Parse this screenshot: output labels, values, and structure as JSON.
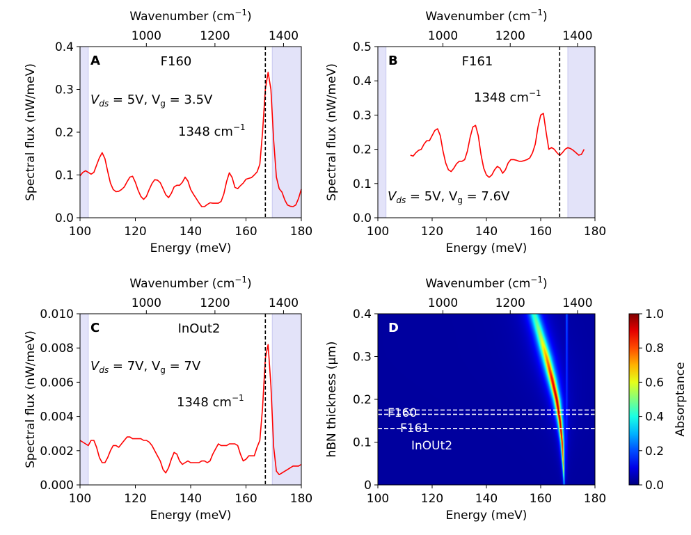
{
  "chart_data": [
    {
      "panel": "A",
      "type": "line",
      "sample": "F160",
      "condition": "V_ds = 5V,  V_g = 3.5V",
      "xlabel": "Energy (meV)",
      "ylabel": "Spectral flux  (nW/meV)",
      "top_xlabel": "Wavenumber (cm−1)",
      "xlim": [
        100,
        180
      ],
      "ylim": [
        0.0,
        0.4
      ],
      "xticks": [
        "100",
        "120",
        "140",
        "160",
        "180"
      ],
      "yticks": [
        "0.0",
        "0.1",
        "0.2",
        "0.3",
        "0.4"
      ],
      "top_ticks": [
        "800",
        "1000",
        "1200",
        "1400"
      ],
      "bands": [
        [
          100,
          103
        ],
        [
          169.5,
          180
        ]
      ],
      "vline": 167,
      "annotation": "1348 cm−1",
      "series": [
        {
          "color": "#ff0000",
          "x": [
            100,
            101,
            102,
            103,
            104,
            105,
            106,
            107,
            108,
            109,
            110,
            111,
            112,
            113,
            114,
            115,
            116,
            117,
            118,
            119,
            120,
            121,
            122,
            123,
            124,
            125,
            126,
            127,
            128,
            129,
            130,
            131,
            132,
            133,
            134,
            135,
            136,
            137,
            138,
            139,
            140,
            141,
            142,
            143,
            144,
            145,
            146,
            147,
            148,
            149,
            150,
            151,
            152,
            153,
            154,
            155,
            156,
            157,
            158,
            159,
            160,
            161,
            162,
            163,
            164,
            165,
            166,
            167,
            168,
            169,
            170,
            171,
            172,
            173,
            174,
            175,
            176,
            177,
            178,
            179,
            180
          ],
          "y": [
            0.098,
            0.106,
            0.11,
            0.106,
            0.102,
            0.106,
            0.123,
            0.14,
            0.152,
            0.138,
            0.108,
            0.081,
            0.066,
            0.061,
            0.062,
            0.066,
            0.072,
            0.084,
            0.095,
            0.097,
            0.083,
            0.064,
            0.05,
            0.043,
            0.05,
            0.066,
            0.08,
            0.089,
            0.088,
            0.082,
            0.068,
            0.054,
            0.047,
            0.057,
            0.072,
            0.076,
            0.076,
            0.083,
            0.095,
            0.086,
            0.066,
            0.055,
            0.045,
            0.035,
            0.026,
            0.026,
            0.031,
            0.035,
            0.034,
            0.034,
            0.034,
            0.038,
            0.056,
            0.085,
            0.105,
            0.094,
            0.071,
            0.068,
            0.075,
            0.081,
            0.09,
            0.092,
            0.094,
            0.1,
            0.107,
            0.125,
            0.2,
            0.3,
            0.34,
            0.3,
            0.18,
            0.095,
            0.068,
            0.06,
            0.042,
            0.03,
            0.027,
            0.026,
            0.03,
            0.045,
            0.067
          ]
        }
      ]
    },
    {
      "panel": "B",
      "type": "line",
      "sample": "F161",
      "condition": "V_ds = 5V,  V_g = 7.6V",
      "xlabel": "Energy (meV)",
      "ylabel": "Spectral flux  (nW/meV)",
      "top_xlabel": "Wavenumber (cm−1)",
      "xlim": [
        100,
        180
      ],
      "ylim": [
        0.0,
        0.5
      ],
      "xticks": [
        "100",
        "120",
        "140",
        "160",
        "180"
      ],
      "yticks": [
        "0.0",
        "0.1",
        "0.2",
        "0.3",
        "0.4",
        "0.5"
      ],
      "top_ticks": [
        "800",
        "1000",
        "1200",
        "1400"
      ],
      "bands": [
        [
          100,
          103
        ],
        [
          170,
          180
        ]
      ],
      "vline": 167,
      "annotation": "1348 cm−1",
      "series": [
        {
          "color": "#ff0000",
          "x": [
            112,
            113,
            114,
            115,
            116,
            117,
            118,
            119,
            120,
            121,
            122,
            123,
            124,
            125,
            126,
            127,
            128,
            129,
            130,
            131,
            132,
            133,
            134,
            135,
            136,
            137,
            138,
            139,
            140,
            141,
            142,
            143,
            144,
            145,
            146,
            147,
            148,
            149,
            150,
            151,
            152,
            153,
            154,
            155,
            156,
            157,
            158,
            159,
            160,
            161,
            162,
            163,
            164,
            165,
            166,
            167,
            168,
            169,
            170,
            171,
            172,
            173,
            174,
            175,
            176
          ],
          "y": [
            0.183,
            0.18,
            0.19,
            0.197,
            0.2,
            0.215,
            0.225,
            0.225,
            0.24,
            0.255,
            0.26,
            0.24,
            0.195,
            0.16,
            0.14,
            0.135,
            0.145,
            0.158,
            0.165,
            0.165,
            0.17,
            0.195,
            0.235,
            0.265,
            0.27,
            0.24,
            0.185,
            0.145,
            0.125,
            0.118,
            0.125,
            0.14,
            0.15,
            0.145,
            0.13,
            0.14,
            0.16,
            0.17,
            0.17,
            0.168,
            0.165,
            0.165,
            0.167,
            0.17,
            0.175,
            0.19,
            0.215,
            0.265,
            0.3,
            0.305,
            0.25,
            0.2,
            0.205,
            0.2,
            0.19,
            0.182,
            0.19,
            0.2,
            0.205,
            0.202,
            0.197,
            0.19,
            0.183,
            0.185,
            0.2
          ]
        }
      ]
    },
    {
      "panel": "C",
      "type": "line",
      "sample": "InOut2",
      "condition": "V_ds = 7V,  V_g = 7V",
      "xlabel": "Energy (meV)",
      "ylabel": "Spectral flux  (nW/meV)",
      "top_xlabel": "Wavenumber (cm−1)",
      "xlim": [
        100,
        180
      ],
      "ylim": [
        0.0,
        0.01
      ],
      "xticks": [
        "100",
        "120",
        "140",
        "160",
        "180"
      ],
      "yticks": [
        "0.000",
        "0.002",
        "0.004",
        "0.006",
        "0.008",
        "0.010"
      ],
      "top_ticks": [
        "800",
        "1000",
        "1200",
        "1400"
      ],
      "bands": [
        [
          100,
          103
        ],
        [
          169.5,
          180
        ]
      ],
      "vline": 167,
      "annotation": "1348 cm−1",
      "series": [
        {
          "color": "#ff0000",
          "x": [
            100,
            101,
            102,
            103,
            104,
            105,
            106,
            107,
            108,
            109,
            110,
            111,
            112,
            113,
            114,
            115,
            116,
            117,
            118,
            119,
            120,
            121,
            122,
            123,
            124,
            125,
            126,
            127,
            128,
            129,
            130,
            131,
            132,
            133,
            134,
            135,
            136,
            137,
            138,
            139,
            140,
            141,
            142,
            143,
            144,
            145,
            146,
            147,
            148,
            149,
            150,
            151,
            152,
            153,
            154,
            155,
            156,
            157,
            158,
            159,
            160,
            161,
            162,
            163,
            164,
            165,
            166,
            167,
            168,
            169,
            170,
            171,
            172,
            173,
            174,
            175,
            176,
            177,
            178,
            179,
            180
          ],
          "y": [
            0.0026,
            0.0025,
            0.0024,
            0.0023,
            0.0026,
            0.0026,
            0.0022,
            0.0016,
            0.0013,
            0.0013,
            0.0016,
            0.002,
            0.0023,
            0.0023,
            0.0022,
            0.0024,
            0.0026,
            0.0028,
            0.0028,
            0.0027,
            0.0027,
            0.0027,
            0.0027,
            0.0026,
            0.0026,
            0.0025,
            0.0023,
            0.002,
            0.0017,
            0.0014,
            0.0009,
            0.0007,
            0.001,
            0.0015,
            0.0019,
            0.0018,
            0.0014,
            0.0012,
            0.0013,
            0.0014,
            0.0013,
            0.0013,
            0.0013,
            0.0013,
            0.0014,
            0.0014,
            0.0013,
            0.0014,
            0.0018,
            0.0021,
            0.0024,
            0.0023,
            0.0023,
            0.0023,
            0.0024,
            0.0024,
            0.0024,
            0.0023,
            0.0018,
            0.0014,
            0.0015,
            0.0017,
            0.0017,
            0.0017,
            0.0022,
            0.0026,
            0.0045,
            0.0074,
            0.0082,
            0.0058,
            0.0022,
            0.0008,
            0.0006,
            0.0007,
            0.0008,
            0.0009,
            0.001,
            0.0011,
            0.0011,
            0.0011,
            0.0012
          ]
        }
      ]
    },
    {
      "panel": "D",
      "type": "heatmap",
      "xlabel": "Energy (meV)",
      "ylabel": "hBN thickness (μm)",
      "top_xlabel": "Wavenumber (cm−1)",
      "colorbar_label": "Absorptance",
      "xlim": [
        100,
        180
      ],
      "ylim": [
        0,
        0.4
      ],
      "clim": [
        0.0,
        1.0
      ],
      "xticks": [
        "100",
        "120",
        "140",
        "160",
        "180"
      ],
      "yticks": [
        "0",
        "0.1",
        "0.2",
        "0.3",
        "0.4"
      ],
      "top_ticks": [
        "800",
        "1000",
        "1200",
        "1400"
      ],
      "cbar_ticks": [
        "0.0",
        "0.2",
        "0.4",
        "0.6",
        "0.8",
        "1.0"
      ],
      "hlines": [
        {
          "label": "F160",
          "y": 0.175
        },
        {
          "label": "F161",
          "y": 0.165
        },
        {
          "label": "InOUt2",
          "y": 0.132
        }
      ],
      "ridge": {
        "thickness": [
          0.0,
          0.05,
          0.1,
          0.15,
          0.2,
          0.25,
          0.3,
          0.35,
          0.4
        ],
        "energy": [
          168.5,
          168.2,
          167.8,
          167.0,
          165.8,
          164.0,
          162.0,
          159.8,
          157.5
        ],
        "width": [
          0.4,
          0.6,
          0.9,
          1.3,
          1.8,
          2.3,
          2.8,
          3.2,
          3.6
        ],
        "peak": [
          0.3,
          0.7,
          0.88,
          0.93,
          0.92,
          0.85,
          0.7,
          0.52,
          0.4
        ]
      },
      "secondary_line_energy": 169.5
    }
  ]
}
